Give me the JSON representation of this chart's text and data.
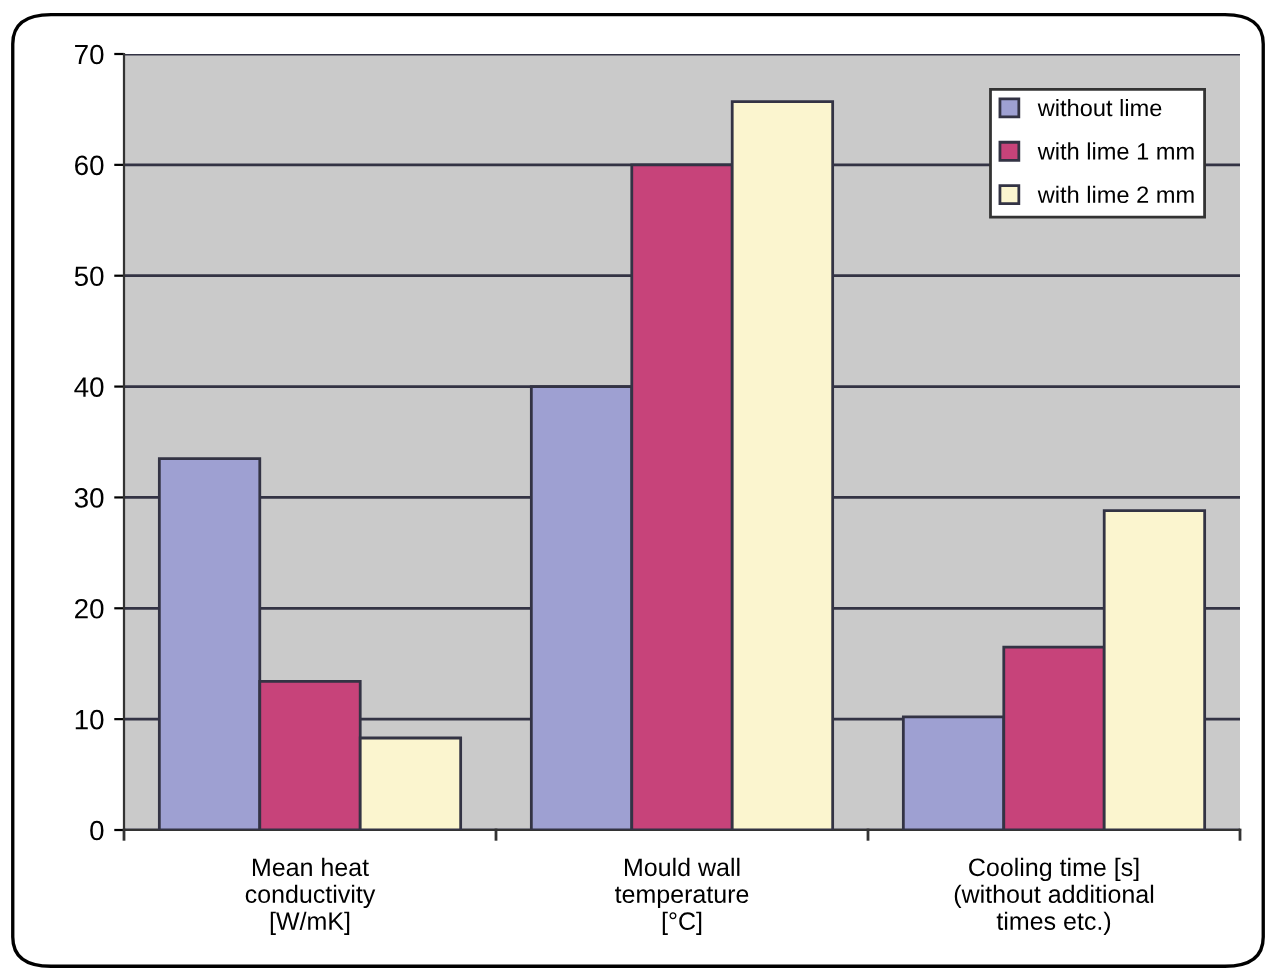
{
  "chart_data": {
    "type": "bar",
    "categories": [
      "Mean heat\nconductivity\n[W/mK]",
      "Mould wall\ntemperature\n[°C]",
      "Cooling time [s]\n(without additional\ntimes etc.)"
    ],
    "series": [
      {
        "name": "without lime",
        "color": "#9ea0d2",
        "values": [
          33.5,
          40,
          10.2
        ]
      },
      {
        "name": "with lime 1 mm",
        "color": "#c7437a",
        "values": [
          13.4,
          60,
          16.5
        ]
      },
      {
        "name": "with lime 2 mm",
        "color": "#fbf5cf",
        "values": [
          8.3,
          65.7,
          28.8
        ]
      }
    ],
    "ylim": [
      0,
      70
    ],
    "yticks": [
      0,
      10,
      20,
      30,
      40,
      50,
      60,
      70
    ],
    "grid": "y",
    "legend": "top right"
  }
}
